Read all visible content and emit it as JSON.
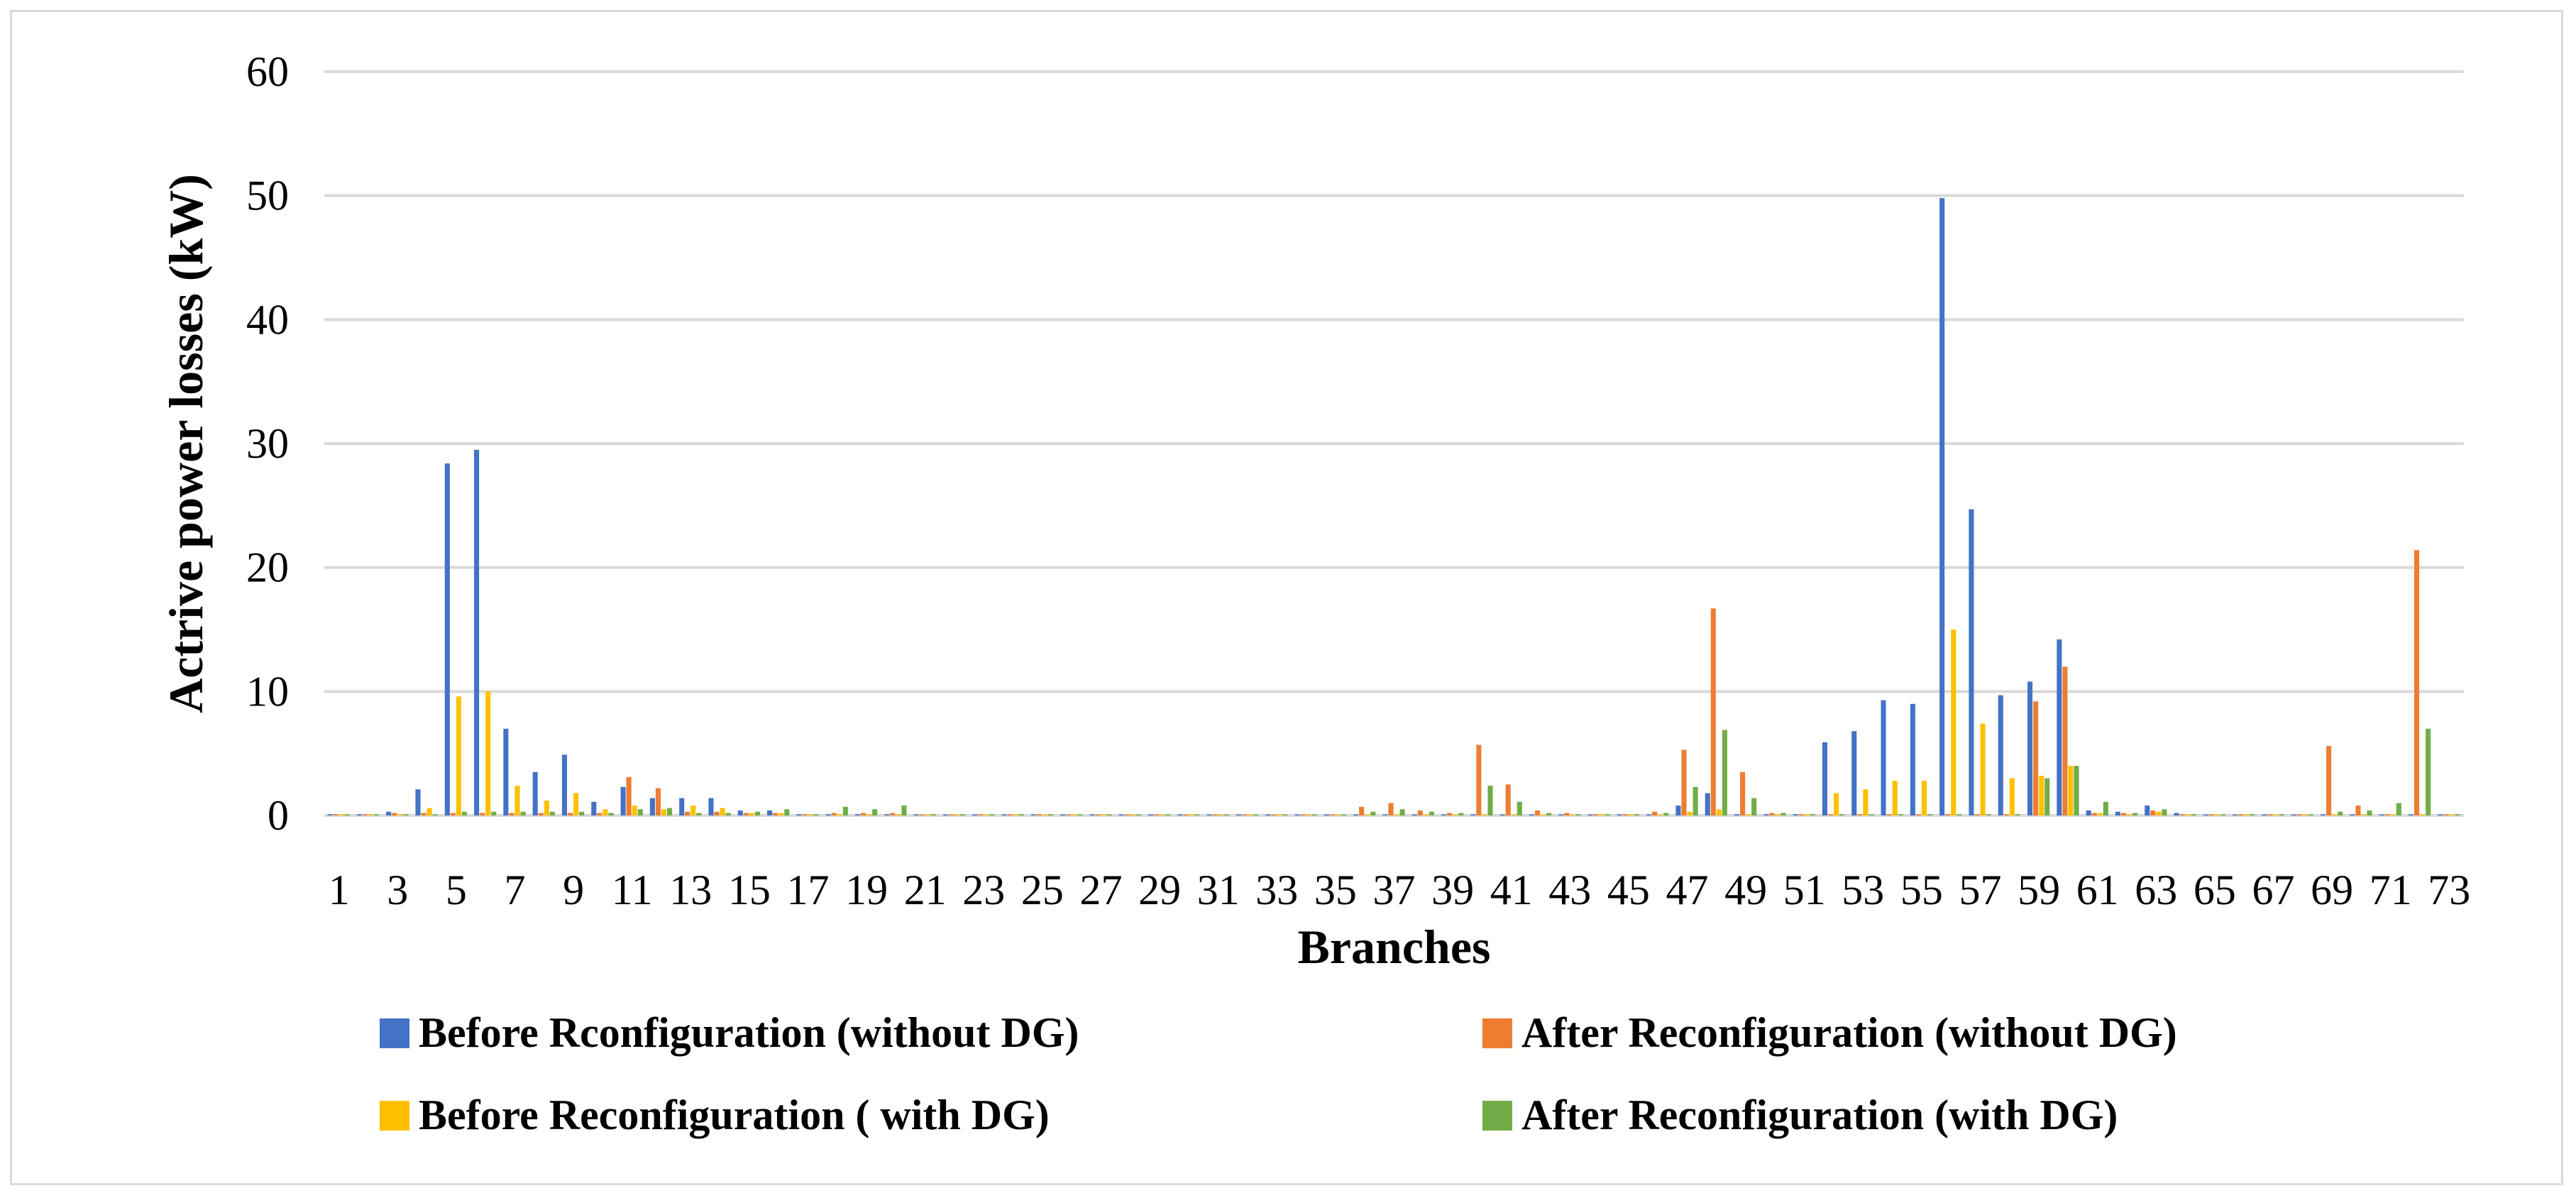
{
  "chart_data": {
    "type": "bar",
    "title": "",
    "xlabel": "Branches",
    "ylabel": "Actrive power losses (kW)",
    "ylim": [
      0,
      60
    ],
    "yticks": [
      "0",
      "10",
      "20",
      "30",
      "40",
      "50",
      "60"
    ],
    "grid": true,
    "legend_position": "bottom",
    "categories": [
      "1",
      "2",
      "3",
      "4",
      "5",
      "6",
      "7",
      "8",
      "9",
      "10",
      "11",
      "12",
      "13",
      "14",
      "15",
      "16",
      "17",
      "18",
      "19",
      "20",
      "21",
      "22",
      "23",
      "24",
      "25",
      "26",
      "27",
      "28",
      "29",
      "30",
      "31",
      "32",
      "33",
      "34",
      "35",
      "36",
      "37",
      "38",
      "39",
      "40",
      "41",
      "42",
      "43",
      "44",
      "45",
      "46",
      "47",
      "48",
      "49",
      "50",
      "51",
      "52",
      "53",
      "54",
      "55",
      "56",
      "57",
      "58",
      "59",
      "60",
      "61",
      "62",
      "63",
      "64",
      "65",
      "66",
      "67",
      "68",
      "69",
      "70",
      "71",
      "72",
      "73"
    ],
    "x_tick_labels": [
      "1",
      "3",
      "5",
      "7",
      "9",
      "11",
      "13",
      "15",
      "17",
      "19",
      "21",
      "23",
      "25",
      "27",
      "29",
      "31",
      "33",
      "35",
      "37",
      "39",
      "41",
      "43",
      "45",
      "47",
      "49",
      "51",
      "53",
      "55",
      "57",
      "59",
      "61",
      "63",
      "65",
      "67",
      "69",
      "71",
      "73"
    ],
    "series": [
      {
        "name": "Before Rconfiguration (without DG)",
        "color": "#4472c4",
        "values": [
          0.1,
          0.1,
          0.3,
          2.1,
          28.4,
          29.5,
          7.0,
          3.5,
          4.9,
          1.1,
          2.3,
          1.4,
          1.4,
          1.4,
          0.4,
          0.4,
          0.1,
          0.1,
          0.1,
          0.1,
          0.05,
          0.05,
          0.05,
          0.05,
          0.05,
          0.05,
          0.05,
          0.05,
          0.05,
          0.05,
          0.05,
          0.05,
          0.05,
          0.05,
          0.05,
          0.05,
          0.05,
          0.05,
          0.05,
          0.05,
          0.05,
          0.05,
          0.05,
          0.05,
          0.05,
          0.05,
          0.8,
          1.8,
          0.1,
          0.1,
          0.1,
          5.9,
          6.8,
          9.3,
          9.0,
          49.8,
          24.7,
          9.7,
          10.8,
          14.2,
          0.4,
          0.3,
          0.8,
          0.2,
          0.05,
          0.05,
          0.05,
          0.05,
          0.05,
          0.05,
          0.05,
          0.05,
          0.05
        ]
      },
      {
        "name": "After Reconfiguration (without DG)",
        "color": "#ed7d31",
        "values": [
          0.1,
          0.1,
          0.2,
          0.2,
          0.2,
          0.2,
          0.2,
          0.2,
          0.2,
          0.2,
          3.1,
          2.2,
          0.3,
          0.3,
          0.2,
          0.2,
          0.1,
          0.2,
          0.2,
          0.2,
          0.05,
          0.05,
          0.1,
          0.1,
          0.1,
          0.05,
          0.05,
          0.05,
          0.05,
          0.05,
          0.05,
          0.05,
          0.05,
          0.05,
          0.05,
          0.7,
          1.0,
          0.4,
          0.2,
          5.7,
          2.5,
          0.4,
          0.2,
          0.1,
          0.1,
          0.3,
          5.3,
          16.7,
          3.5,
          0.2,
          0.1,
          0.1,
          0.1,
          0.1,
          0.1,
          0.1,
          0.1,
          0.1,
          9.2,
          12.0,
          0.2,
          0.2,
          0.4,
          0.1,
          0.1,
          0.1,
          0.1,
          0.1,
          5.6,
          0.8,
          0.1,
          21.4,
          0.1
        ]
      },
      {
        "name": "Before Reconfiguration ( with DG)",
        "color": "#ffc000",
        "values": [
          0.1,
          0.1,
          0.1,
          0.6,
          9.6,
          10.0,
          2.4,
          1.2,
          1.8,
          0.5,
          0.8,
          0.5,
          0.8,
          0.6,
          0.2,
          0.2,
          0.1,
          0.1,
          0.1,
          0.1,
          0.05,
          0.05,
          0.05,
          0.05,
          0.05,
          0.05,
          0.05,
          0.05,
          0.05,
          0.05,
          0.05,
          0.05,
          0.05,
          0.05,
          0.05,
          0.05,
          0.05,
          0.05,
          0.05,
          0.05,
          0.05,
          0.05,
          0.05,
          0.05,
          0.05,
          0.05,
          0.3,
          0.5,
          0.1,
          0.1,
          0.1,
          1.8,
          2.1,
          2.8,
          2.8,
          15.0,
          7.4,
          3.0,
          3.2,
          4.0,
          0.2,
          0.1,
          0.3,
          0.1,
          0.05,
          0.05,
          0.05,
          0.05,
          0.05,
          0.05,
          0.05,
          0.05,
          0.05
        ]
      },
      {
        "name": "After Reconfiguration (with DG)",
        "color": "#70ad47",
        "values": [
          0.1,
          0.1,
          0.1,
          0.1,
          0.3,
          0.3,
          0.3,
          0.3,
          0.3,
          0.2,
          0.5,
          0.6,
          0.2,
          0.2,
          0.3,
          0.5,
          0.1,
          0.7,
          0.5,
          0.8,
          0.1,
          0.1,
          0.1,
          0.1,
          0.1,
          0.05,
          0.05,
          0.05,
          0.05,
          0.05,
          0.05,
          0.05,
          0.05,
          0.05,
          0.05,
          0.3,
          0.5,
          0.3,
          0.2,
          2.4,
          1.1,
          0.2,
          0.1,
          0.1,
          0.1,
          0.2,
          2.3,
          6.9,
          1.4,
          0.2,
          0.1,
          0.1,
          0.1,
          0.1,
          0.1,
          0.1,
          0.1,
          0.1,
          3.0,
          4.0,
          1.1,
          0.2,
          0.5,
          0.1,
          0.1,
          0.1,
          0.1,
          0.1,
          0.3,
          0.4,
          1.0,
          7.0,
          0.1
        ]
      }
    ]
  }
}
